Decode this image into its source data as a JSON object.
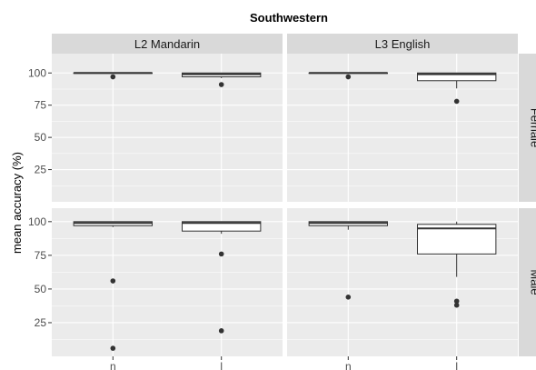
{
  "chart_data": {
    "type": "boxplot",
    "title": "Southwestern",
    "xlabel": "",
    "ylabel": "mean accuracy (%)",
    "ylim": [
      0,
      110
    ],
    "y_ticks": [
      25,
      50,
      75,
      100
    ],
    "categories": [
      "n",
      "l"
    ],
    "column_facets": [
      "L2 Mandarin",
      "L3 English"
    ],
    "row_facets": [
      "Female",
      "Male"
    ],
    "grid": true,
    "panels": [
      {
        "column": "L2 Mandarin",
        "row": "Female",
        "boxes": [
          {
            "category": "n",
            "min": 100,
            "q1": 100,
            "median": 100,
            "q3": 100,
            "max": 100,
            "outliers": [
              97
            ]
          },
          {
            "category": "l",
            "min": 96,
            "q1": 97,
            "median": 99,
            "q3": 100,
            "max": 100,
            "outliers": [
              91
            ]
          }
        ]
      },
      {
        "column": "L3 English",
        "row": "Female",
        "boxes": [
          {
            "category": "n",
            "min": 100,
            "q1": 100,
            "median": 100,
            "q3": 100,
            "max": 100,
            "outliers": [
              97
            ]
          },
          {
            "category": "l",
            "min": 88,
            "q1": 94,
            "median": 99,
            "q3": 100,
            "max": 100,
            "outliers": [
              78
            ]
          }
        ]
      },
      {
        "column": "L2 Mandarin",
        "row": "Male",
        "boxes": [
          {
            "category": "n",
            "min": 96,
            "q1": 97,
            "median": 99,
            "q3": 100,
            "max": 100,
            "outliers": [
              56,
              6
            ]
          },
          {
            "category": "l",
            "min": 91,
            "q1": 93,
            "median": 99,
            "q3": 100,
            "max": 100,
            "outliers": [
              76,
              19
            ]
          }
        ]
      },
      {
        "column": "L3 English",
        "row": "Male",
        "boxes": [
          {
            "category": "n",
            "min": 94,
            "q1": 97,
            "median": 99,
            "q3": 100,
            "max": 100,
            "outliers": [
              44
            ]
          },
          {
            "category": "l",
            "min": 59,
            "q1": 76,
            "median": 95,
            "q3": 98,
            "max": 100,
            "outliers": [
              41,
              38
            ]
          }
        ]
      }
    ],
    "colors": {
      "panel_background": "#ebebeb",
      "grid": "#ffffff",
      "strip_background": "#d9d9d9",
      "box_fill": "#ffffff",
      "box_line": "#333333",
      "point": "#333333"
    }
  }
}
